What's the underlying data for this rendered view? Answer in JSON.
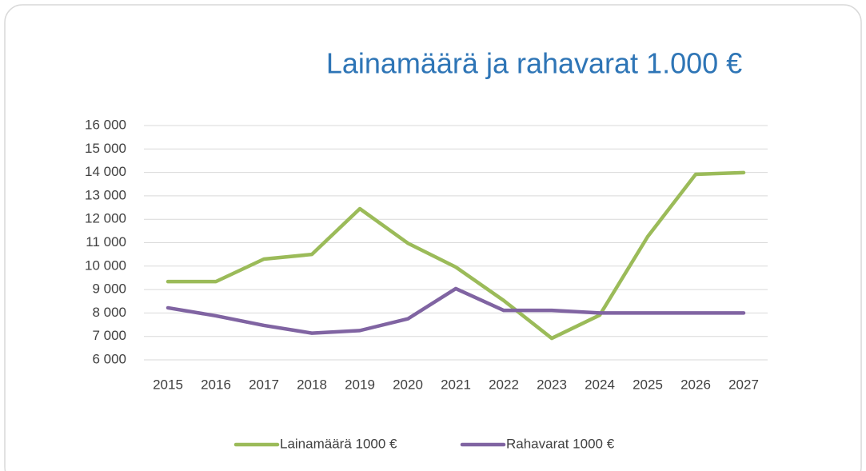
{
  "chart_data": {
    "type": "line",
    "title": "Lainamäärä ja rahavarat 1.000 €",
    "categories": [
      "2015",
      "2016",
      "2017",
      "2018",
      "2019",
      "2020",
      "2021",
      "2022",
      "2023",
      "2024",
      "2025",
      "2026",
      "2027"
    ],
    "series": [
      {
        "name": "Lainamäärä 1000 €",
        "color": "#9bbb59",
        "values": [
          9340,
          9340,
          10300,
          10500,
          12450,
          10980,
          9960,
          8530,
          6920,
          7910,
          11260,
          13920,
          13990
        ]
      },
      {
        "name": "Rahavarat 1000 €",
        "color": "#8064a2",
        "values": [
          8220,
          7880,
          7470,
          7140,
          7250,
          7750,
          9040,
          8110,
          8110,
          8000,
          8000,
          8000,
          8000
        ]
      }
    ],
    "ylim": [
      6000,
      16000
    ],
    "yticks": [
      {
        "value": 6000,
        "label": "6 000"
      },
      {
        "value": 7000,
        "label": "7 000"
      },
      {
        "value": 8000,
        "label": "8 000"
      },
      {
        "value": 9000,
        "label": "9 000"
      },
      {
        "value": 10000,
        "label": "10 000"
      },
      {
        "value": 11000,
        "label": "11 000"
      },
      {
        "value": 12000,
        "label": "12 000"
      },
      {
        "value": 13000,
        "label": "13 000"
      },
      {
        "value": 14000,
        "label": "14 000"
      },
      {
        "value": 15000,
        "label": "15 000"
      },
      {
        "value": 16000,
        "label": "16 000"
      }
    ],
    "grid": true,
    "legend": "bottom"
  }
}
